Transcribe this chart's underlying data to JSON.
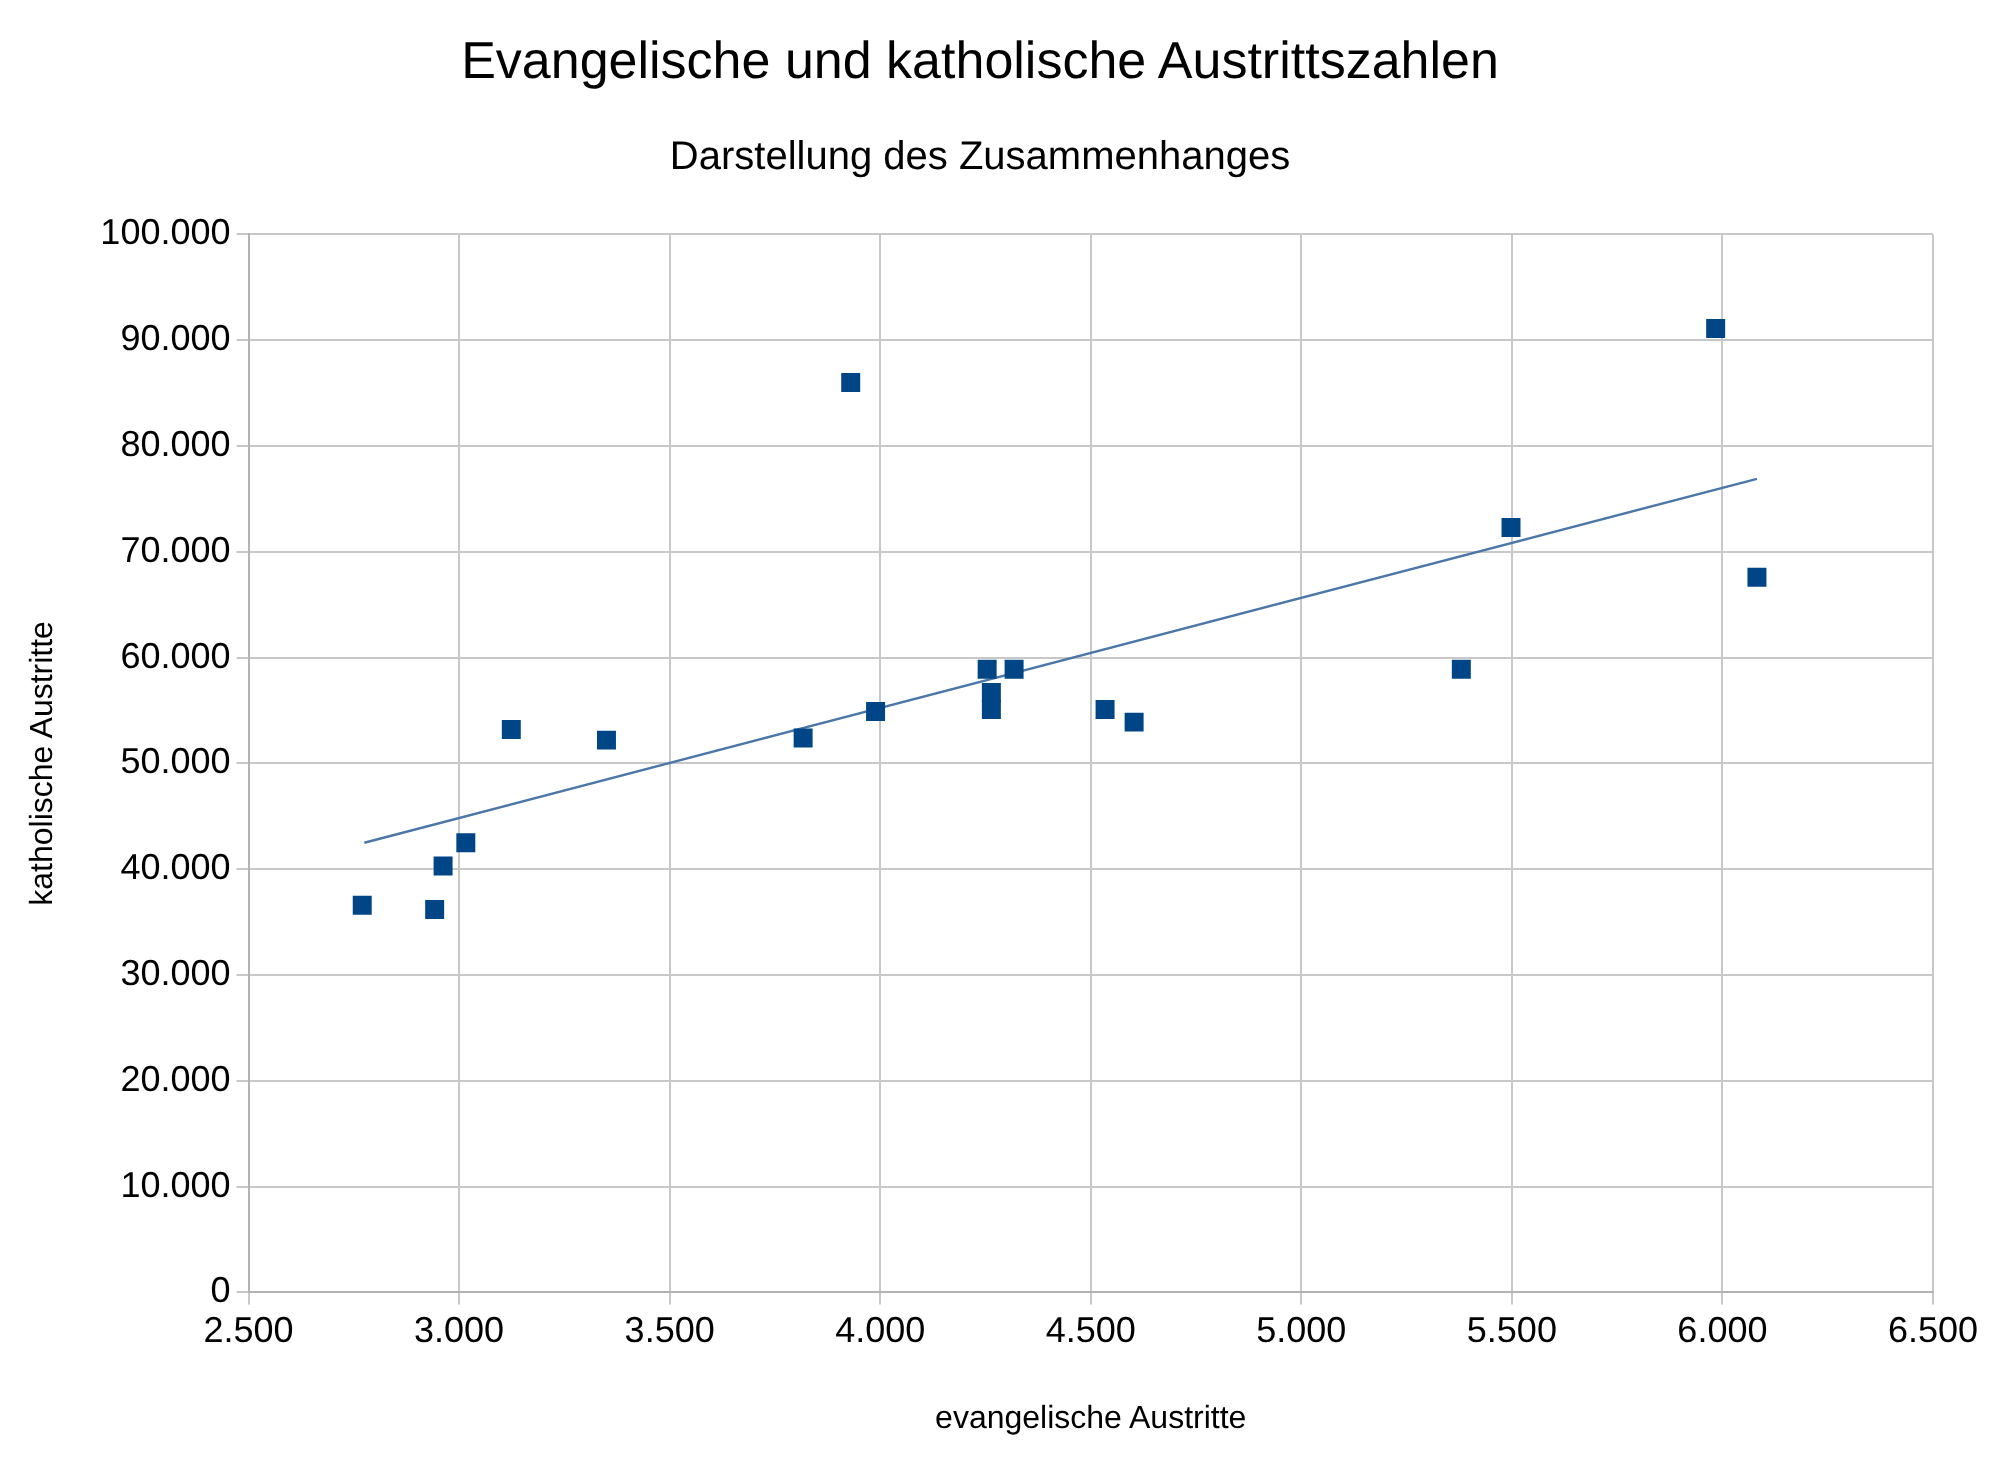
{
  "chart_data": {
    "type": "scatter",
    "title": "Evangelische und katholische Austrittszahlen",
    "subtitle": "Darstellung des Zusammenhanges",
    "xlabel": "evangelische Austritte",
    "ylabel": "katholische Austritte",
    "series": [
      {
        "color": "#004586",
        "marker": "square",
        "x": [
          2770,
          2942,
          2962,
          3016,
          3124,
          3350,
          3817,
          3930,
          3989,
          4254,
          4264,
          4264,
          4318,
          4534,
          4603,
          5380,
          5498,
          5984,
          6082
        ],
        "values": [
          36600,
          36200,
          40300,
          42500,
          53200,
          52200,
          52400,
          86000,
          54900,
          58900,
          56700,
          55100,
          58900,
          55100,
          53900,
          58900,
          72300,
          91100,
          67600
        ]
      },
      {
        "type": "line",
        "color": "#4a76a8",
        "marker": "none",
        "x": [
          2775,
          6082
        ],
        "values": [
          42500,
          76900
        ]
      }
    ],
    "xlim": [
      2500,
      6500
    ],
    "xticks": [
      {
        "value": 2500,
        "label": "2.500"
      },
      {
        "value": 3000,
        "label": "3.000"
      },
      {
        "value": 3500,
        "label": "3.500"
      },
      {
        "value": 4000,
        "label": "4.000"
      },
      {
        "value": 4500,
        "label": "4.500"
      },
      {
        "value": 5000,
        "label": "5.000"
      },
      {
        "value": 5500,
        "label": "5.500"
      },
      {
        "value": 6000,
        "label": "6.000"
      },
      {
        "value": 6500,
        "label": "6.500"
      }
    ],
    "ylim": [
      0,
      100000
    ],
    "yticks": [
      0,
      {
        "value": 10000,
        "label": "10.000"
      },
      {
        "value": 20000,
        "label": "20.000"
      },
      {
        "value": 30000,
        "label": "30.000"
      },
      {
        "value": 40000,
        "label": "40.000"
      },
      {
        "value": 50000,
        "label": "50.000"
      },
      {
        "value": 60000,
        "label": "60.000"
      },
      {
        "value": 70000,
        "label": "70.000"
      },
      {
        "value": 80000,
        "label": "80.000"
      },
      {
        "value": 90000,
        "label": "90.000"
      },
      {
        "value": 100000,
        "label": "100.000"
      }
    ],
    "grid": true,
    "legend": false
  }
}
